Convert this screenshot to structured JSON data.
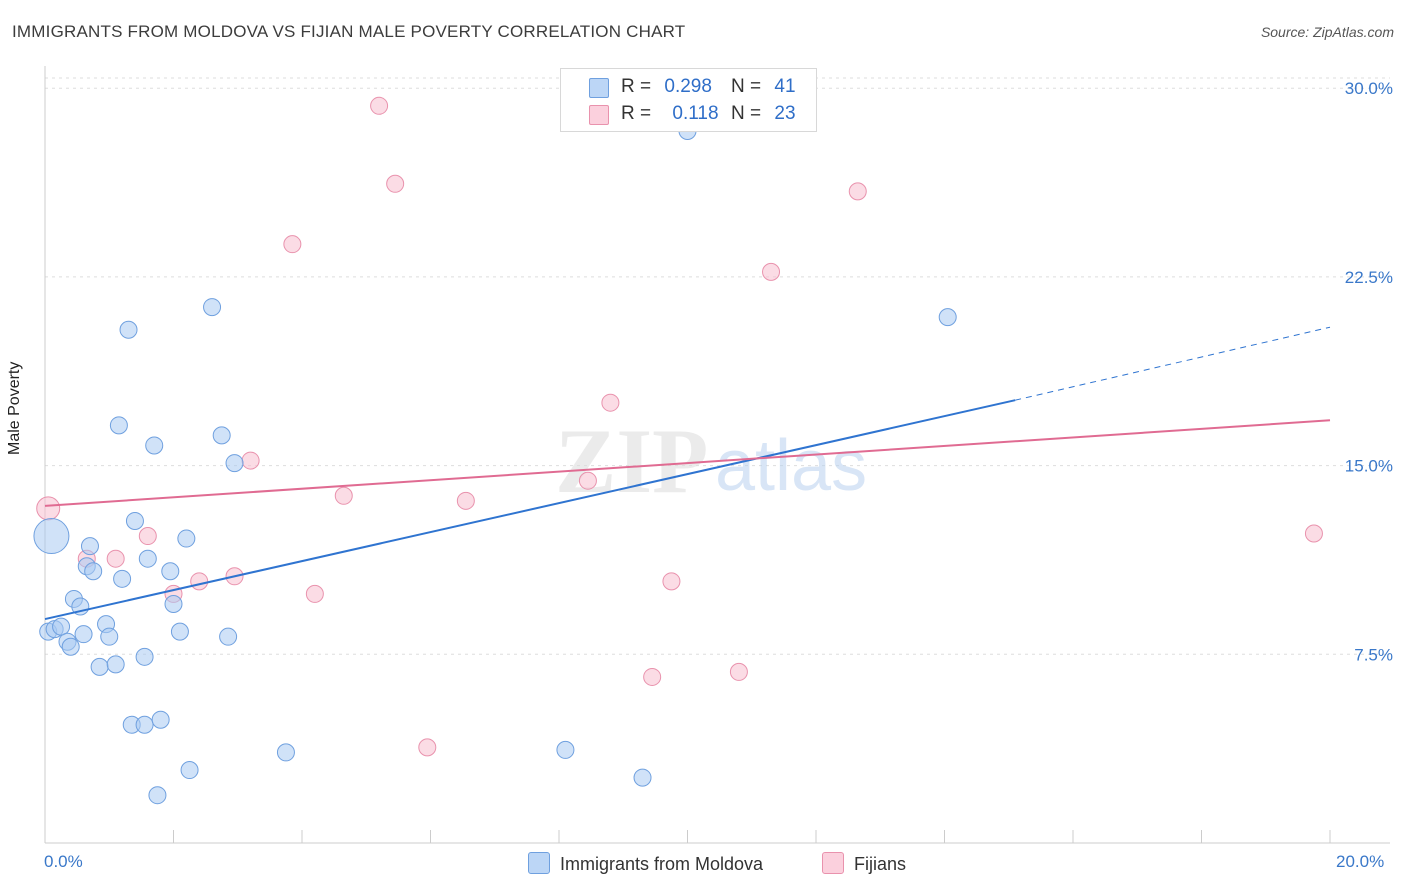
{
  "title": "IMMIGRANTS FROM MOLDOVA VS FIJIAN MALE POVERTY CORRELATION CHART",
  "source": "Source: ZipAtlas.com",
  "colors": {
    "blue_fill": "#a9cbf3",
    "blue_stroke": "#6fa0df",
    "blue_line": "#2f74d0",
    "pink_fill": "#f7bfd0",
    "pink_stroke": "#e992ad",
    "pink_line": "#e06b92",
    "tick_text": "#3a78c9",
    "grid": "#dddddd"
  },
  "legend_top": {
    "blue": {
      "r_label": "R =",
      "r_value": "0.298",
      "n_label": "N =",
      "n_value": "41"
    },
    "pink": {
      "r_label": "R =",
      "r_value": "0.118",
      "n_label": "N =",
      "n_value": "23"
    }
  },
  "chart_data": {
    "type": "scatter",
    "title": "IMMIGRANTS FROM MOLDOVA VS FIJIAN MALE POVERTY CORRELATION CHART",
    "xlabel": "",
    "ylabel": "Male Poverty",
    "xlim": [
      0,
      20
    ],
    "ylim": [
      0,
      31.2
    ],
    "x_tick_labels": [
      "0.0%",
      "20.0%"
    ],
    "y_ticks": [
      7.5,
      15.0,
      22.5,
      30.0
    ],
    "y_tick_labels": [
      "7.5%",
      "15.0%",
      "22.5%",
      "30.0%"
    ],
    "watermark": "ZIPatlas",
    "series": [
      {
        "name": "Immigrants from Moldova",
        "color": "#a9cbf3",
        "points": [
          [
            0.05,
            8.4,
            8
          ],
          [
            0.15,
            8.5,
            8
          ],
          [
            0.25,
            8.6,
            8
          ],
          [
            0.35,
            8.0,
            8
          ],
          [
            0.4,
            7.8,
            8
          ],
          [
            0.45,
            9.7,
            8
          ],
          [
            0.55,
            9.4,
            8
          ],
          [
            0.6,
            8.3,
            8
          ],
          [
            0.65,
            11.0,
            8
          ],
          [
            0.7,
            11.8,
            8
          ],
          [
            0.75,
            10.8,
            8
          ],
          [
            0.85,
            7.0,
            8
          ],
          [
            0.95,
            8.7,
            8
          ],
          [
            1.0,
            8.2,
            8
          ],
          [
            1.1,
            7.1,
            8
          ],
          [
            1.15,
            16.6,
            8
          ],
          [
            1.2,
            10.5,
            8
          ],
          [
            1.3,
            20.4,
            8
          ],
          [
            1.35,
            4.7,
            8
          ],
          [
            1.4,
            12.8,
            8
          ],
          [
            1.55,
            4.7,
            8
          ],
          [
            1.55,
            7.4,
            8
          ],
          [
            1.6,
            11.3,
            8
          ],
          [
            1.7,
            15.8,
            8
          ],
          [
            1.75,
            1.9,
            8
          ],
          [
            1.8,
            4.9,
            8
          ],
          [
            1.95,
            10.8,
            8
          ],
          [
            2.0,
            9.5,
            8
          ],
          [
            2.1,
            8.4,
            8
          ],
          [
            2.2,
            12.1,
            8
          ],
          [
            2.25,
            2.9,
            8
          ],
          [
            2.6,
            21.3,
            8
          ],
          [
            2.75,
            16.2,
            8
          ],
          [
            2.85,
            8.2,
            8
          ],
          [
            2.95,
            15.1,
            8
          ],
          [
            3.75,
            3.6,
            8
          ],
          [
            8.1,
            3.7,
            8
          ],
          [
            9.3,
            2.6,
            8
          ],
          [
            14.05,
            20.9,
            8
          ],
          [
            0.1,
            12.2,
            17
          ],
          [
            10.0,
            28.3,
            8
          ]
        ],
        "trend": {
          "x_start": 0,
          "y_start": 8.9,
          "x_solid_end": 15.1,
          "y_solid_end": 17.6,
          "x_dash_end": 20,
          "y_dash_end": 20.5
        }
      },
      {
        "name": "Fijians",
        "color": "#f7bfd0",
        "points": [
          [
            0.05,
            13.3,
            11
          ],
          [
            0.65,
            11.3,
            8
          ],
          [
            1.1,
            11.3,
            8
          ],
          [
            1.6,
            12.2,
            8
          ],
          [
            2.0,
            9.9,
            8
          ],
          [
            2.4,
            10.4,
            8
          ],
          [
            2.95,
            10.6,
            8
          ],
          [
            3.2,
            15.2,
            8
          ],
          [
            3.85,
            23.8,
            8
          ],
          [
            4.2,
            9.9,
            8
          ],
          [
            4.65,
            13.8,
            8
          ],
          [
            5.2,
            29.3,
            8
          ],
          [
            5.45,
            26.2,
            8
          ],
          [
            5.95,
            3.8,
            8
          ],
          [
            6.55,
            13.6,
            8
          ],
          [
            8.45,
            14.4,
            8
          ],
          [
            8.8,
            17.5,
            8
          ],
          [
            9.45,
            6.6,
            8
          ],
          [
            9.75,
            10.4,
            8
          ],
          [
            10.8,
            6.8,
            8
          ],
          [
            11.3,
            22.7,
            8
          ],
          [
            12.65,
            25.9,
            8
          ],
          [
            19.75,
            12.3,
            8
          ]
        ],
        "trend": {
          "x_start": 0,
          "y_start": 13.4,
          "x_end": 20,
          "y_end": 16.8
        }
      }
    ]
  },
  "legend_bottom": {
    "blue_label": "Immigrants from Moldova",
    "pink_label": "Fijians"
  }
}
